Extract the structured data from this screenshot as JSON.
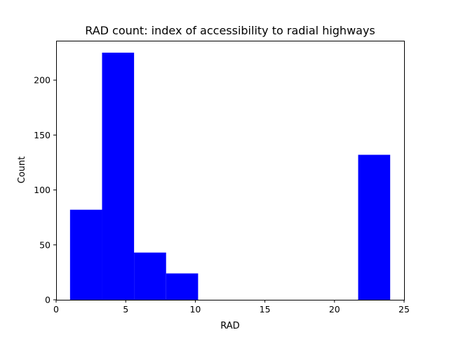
{
  "chart_data": {
    "type": "bar",
    "title": "RAD count: index of accessibility to radial highways",
    "xlabel": "RAD",
    "ylabel": "Count",
    "xlim": [
      0,
      25
    ],
    "ylim": [
      0,
      225
    ],
    "xticks": [
      0,
      5,
      10,
      15,
      20,
      25
    ],
    "yticks": [
      0,
      50,
      100,
      150,
      200
    ],
    "bins": [
      {
        "start": 1.0,
        "end": 3.3,
        "count": 82
      },
      {
        "start": 3.3,
        "end": 5.6,
        "count": 225
      },
      {
        "start": 5.6,
        "end": 7.9,
        "count": 43
      },
      {
        "start": 7.9,
        "end": 10.2,
        "count": 24
      },
      {
        "start": 10.2,
        "end": 12.5,
        "count": 0
      },
      {
        "start": 12.5,
        "end": 14.8,
        "count": 0
      },
      {
        "start": 14.8,
        "end": 17.1,
        "count": 0
      },
      {
        "start": 17.1,
        "end": 19.4,
        "count": 0
      },
      {
        "start": 19.4,
        "end": 21.7,
        "count": 0
      },
      {
        "start": 21.7,
        "end": 24.0,
        "count": 132
      }
    ],
    "bar_color": "#0000ff",
    "grid": false,
    "legend": "none"
  }
}
